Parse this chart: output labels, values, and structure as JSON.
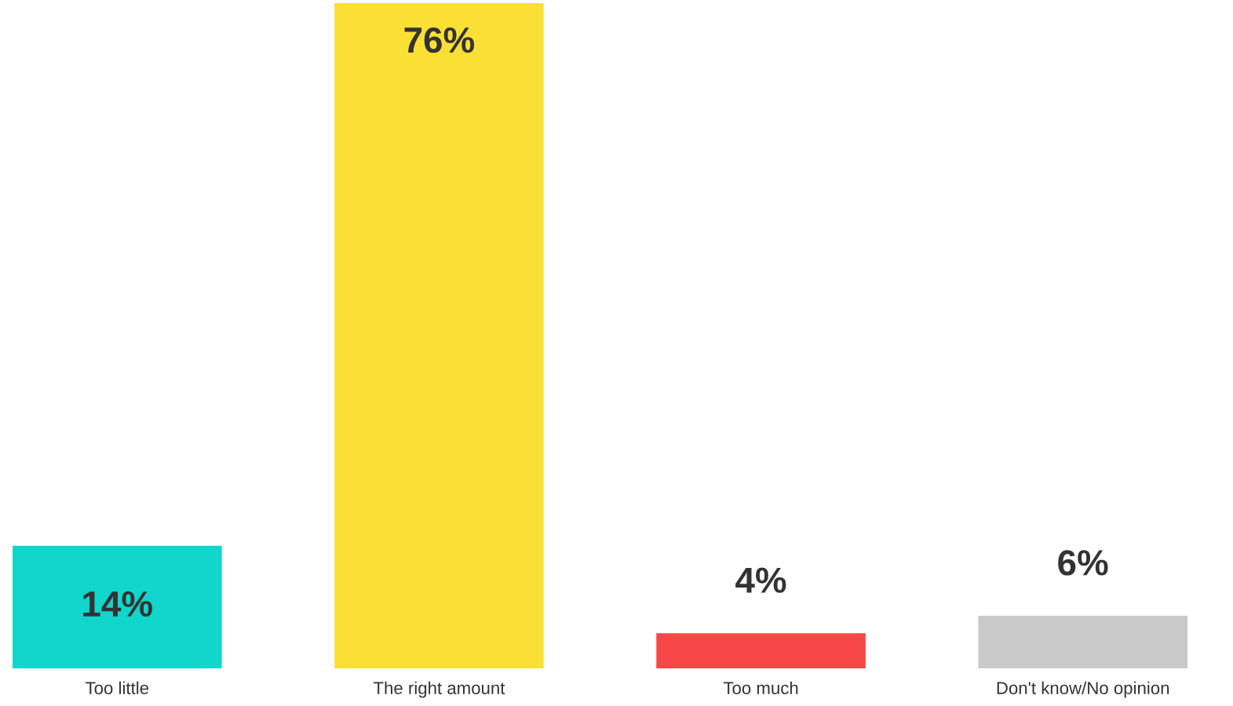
{
  "chart_data": {
    "type": "bar",
    "categories": [
      "Too little",
      "The right amount",
      "Too much",
      "Don't know/No opinion"
    ],
    "values": [
      14,
      76,
      4,
      6
    ],
    "colors": [
      "#10d6cc",
      "#fadf35",
      "#f54745",
      "#c9c9c9"
    ],
    "value_labels": [
      "14%",
      "76%",
      "4%",
      "6%"
    ],
    "grid": false,
    "legend": false
  }
}
